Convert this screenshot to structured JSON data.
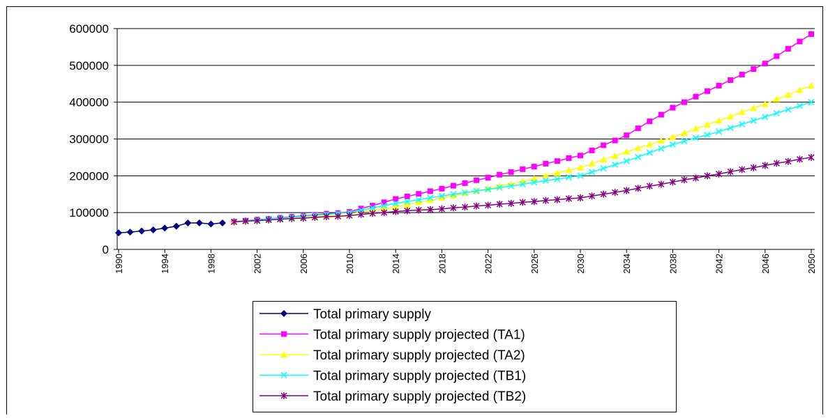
{
  "chart_data": {
    "type": "line",
    "x": [
      1990,
      1991,
      1992,
      1993,
      1994,
      1995,
      1996,
      1997,
      1998,
      1999,
      2000,
      2001,
      2002,
      2003,
      2004,
      2005,
      2006,
      2007,
      2008,
      2009,
      2010,
      2011,
      2012,
      2013,
      2014,
      2015,
      2016,
      2017,
      2018,
      2019,
      2020,
      2021,
      2022,
      2023,
      2024,
      2025,
      2026,
      2027,
      2028,
      2029,
      2030,
      2031,
      2032,
      2033,
      2034,
      2035,
      2036,
      2037,
      2038,
      2039,
      2040,
      2041,
      2042,
      2043,
      2044,
      2045,
      2046,
      2047,
      2048,
      2049,
      2050
    ],
    "xlim": [
      1990,
      2050
    ],
    "xticks": [
      1990,
      1994,
      1998,
      2002,
      2006,
      2010,
      2014,
      2018,
      2022,
      2026,
      2030,
      2034,
      2038,
      2042,
      2046,
      2050
    ],
    "ylim": [
      0,
      600000
    ],
    "yticks": [
      0,
      100000,
      200000,
      300000,
      400000,
      500000,
      600000
    ],
    "grid": true,
    "series": [
      {
        "name": "Total primary supply",
        "color": "#000080",
        "marker": "diamond",
        "values": [
          45000,
          47000,
          50000,
          53000,
          58000,
          63000,
          72000,
          72000,
          69000,
          72000,
          null,
          null,
          null,
          null,
          null,
          null,
          null,
          null,
          null,
          null,
          null,
          null,
          null,
          null,
          null,
          null,
          null,
          null,
          null,
          null,
          null,
          null,
          null,
          null,
          null,
          null,
          null,
          null,
          null,
          null,
          null,
          null,
          null,
          null,
          null,
          null,
          null,
          null,
          null,
          null,
          null,
          null,
          null,
          null,
          null,
          null,
          null,
          null,
          null,
          null,
          null
        ]
      },
      {
        "name": "Total primary supply projected (TA1)",
        "color": "#ff00ff",
        "marker": "square",
        "values": [
          null,
          null,
          null,
          null,
          null,
          null,
          null,
          null,
          null,
          null,
          75000,
          78000,
          81000,
          83000,
          86000,
          89000,
          91000,
          94000,
          97000,
          99000,
          102000,
          111000,
          119000,
          128000,
          137000,
          144000,
          151000,
          158000,
          165000,
          173000,
          180000,
          188000,
          195000,
          203000,
          210000,
          218000,
          225000,
          233000,
          240000,
          248000,
          255000,
          269000,
          283000,
          296000,
          310000,
          329000,
          348000,
          366000,
          385000,
          400000,
          415000,
          430000,
          445000,
          460000,
          475000,
          490000,
          505000,
          525000,
          545000,
          565000,
          585000
        ]
      },
      {
        "name": "Total primary supply projected (TA2)",
        "color": "#ffff00",
        "marker": "triangle",
        "values": [
          null,
          null,
          null,
          null,
          null,
          null,
          null,
          null,
          null,
          null,
          75000,
          77000,
          79000,
          81000,
          83000,
          86000,
          88000,
          90000,
          92000,
          94000,
          96000,
          101000,
          106000,
          110000,
          115000,
          121000,
          128000,
          134000,
          140000,
          146000,
          153000,
          159000,
          165000,
          172000,
          178000,
          185000,
          192000,
          200000,
          207000,
          215000,
          222000,
          233000,
          244000,
          254000,
          265000,
          275000,
          285000,
          295000,
          305000,
          316000,
          328000,
          339000,
          350000,
          361000,
          373000,
          384000,
          395000,
          408000,
          420000,
          433000,
          445000
        ]
      },
      {
        "name": "Total primary supply projected (TB1)",
        "color": "#00ffff",
        "marker": "x",
        "values": [
          null,
          null,
          null,
          null,
          null,
          null,
          null,
          null,
          null,
          null,
          75000,
          78000,
          80000,
          83000,
          85000,
          88000,
          90000,
          93000,
          95000,
          98000,
          100000,
          106000,
          113000,
          119000,
          125000,
          130000,
          135000,
          140000,
          145000,
          150000,
          154000,
          159000,
          163000,
          168000,
          172000,
          177000,
          182000,
          187000,
          191000,
          196000,
          200000,
          210000,
          220000,
          230000,
          240000,
          251000,
          263000,
          274000,
          285000,
          294000,
          303000,
          311000,
          320000,
          330000,
          340000,
          350000,
          360000,
          370000,
          380000,
          390000,
          400000
        ]
      },
      {
        "name": "Total primary supply projected (TB2)",
        "color": "#800080",
        "marker": "star",
        "values": [
          null,
          null,
          null,
          null,
          null,
          null,
          null,
          null,
          null,
          null,
          75000,
          77000,
          78000,
          80000,
          82000,
          84000,
          85000,
          87000,
          89000,
          90000,
          92000,
          95000,
          98000,
          100000,
          103000,
          105000,
          107000,
          108000,
          110000,
          113000,
          115000,
          118000,
          120000,
          123000,
          125000,
          128000,
          130000,
          133000,
          135000,
          138000,
          140000,
          145000,
          150000,
          155000,
          160000,
          166000,
          172000,
          177000,
          183000,
          189000,
          194000,
          200000,
          205000,
          211000,
          217000,
          222000,
          228000,
          234000,
          239000,
          245000,
          250000
        ]
      }
    ]
  }
}
